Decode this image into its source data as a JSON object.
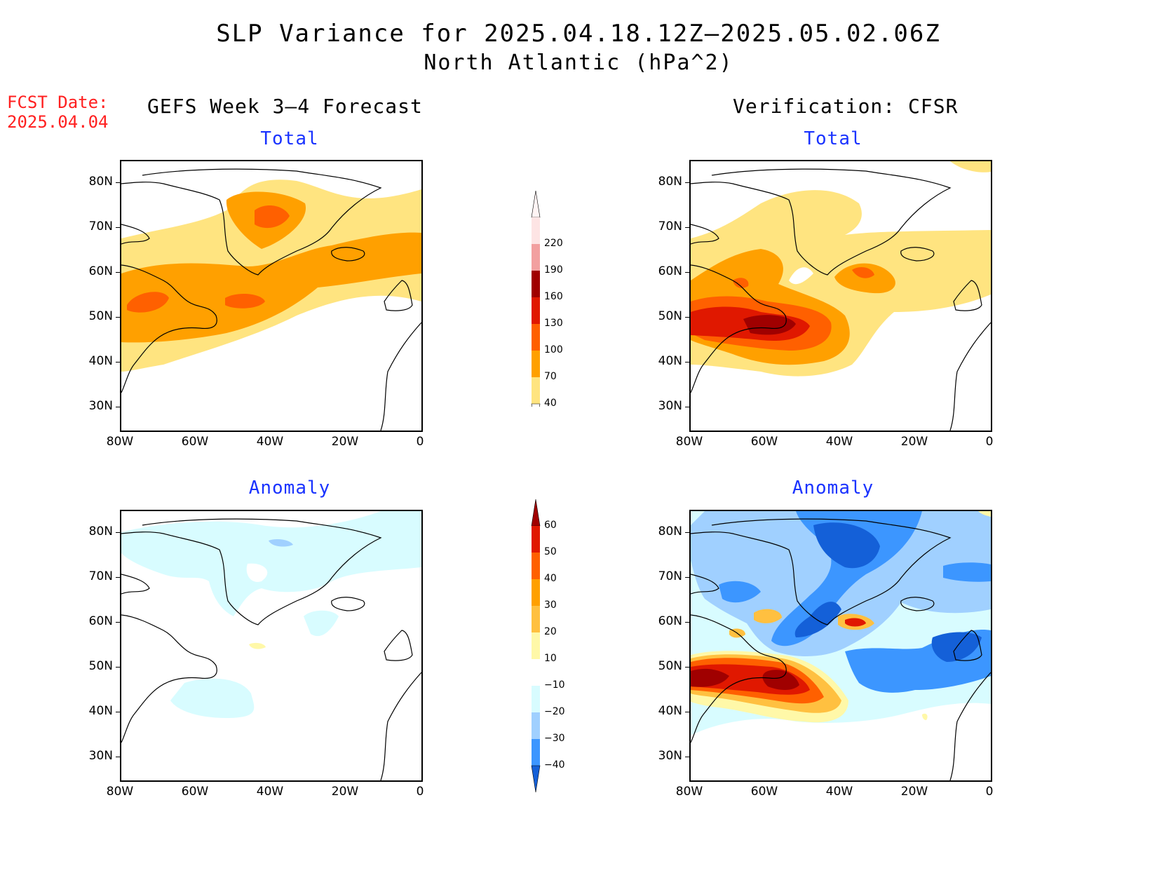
{
  "title": {
    "line1": "SLP Variance for 2025.04.18.12Z—2025.05.02.06Z",
    "line2": "North Atlantic (hPa^2)"
  },
  "fcst_date": {
    "label": "FCST Date:",
    "value": "2025.04.04"
  },
  "columns": {
    "left": "GEFS Week 3—4 Forecast",
    "right": "Verification: CFSR"
  },
  "panels": {
    "forecast_total": {
      "subtitle": "Total"
    },
    "forecast_anomaly": {
      "subtitle": "Anomaly"
    },
    "verif_total": {
      "subtitle": "Total"
    },
    "verif_anomaly": {
      "subtitle": "Anomaly"
    }
  },
  "axes": {
    "lat_labels": [
      "80N",
      "70N",
      "60N",
      "50N",
      "40N",
      "30N"
    ],
    "lon_labels": [
      "80W",
      "60W",
      "40W",
      "20W",
      "0"
    ],
    "lat_range": [
      25,
      85
    ],
    "lon_range": [
      -80,
      0
    ]
  },
  "total_colorbar": {
    "labels": [
      "220",
      "190",
      "160",
      "130",
      "100",
      "70",
      "40"
    ],
    "colors": [
      "#fde4e4",
      "#f2a0a0",
      "#a00000",
      "#e01800",
      "#ff6000",
      "#ffa000",
      "#ffe480"
    ]
  },
  "anomaly_colorbar": {
    "labels": [
      "60",
      "50",
      "40",
      "30",
      "20",
      "10",
      "−10",
      "−20",
      "−30",
      "−40"
    ],
    "colors": [
      "#a00000",
      "#e01800",
      "#ff6000",
      "#ffa000",
      "#ffc040",
      "#fff8a8",
      "#ffffff",
      "#d8fcff",
      "#a0d0ff",
      "#3c96ff",
      "#1460d8"
    ]
  }
}
